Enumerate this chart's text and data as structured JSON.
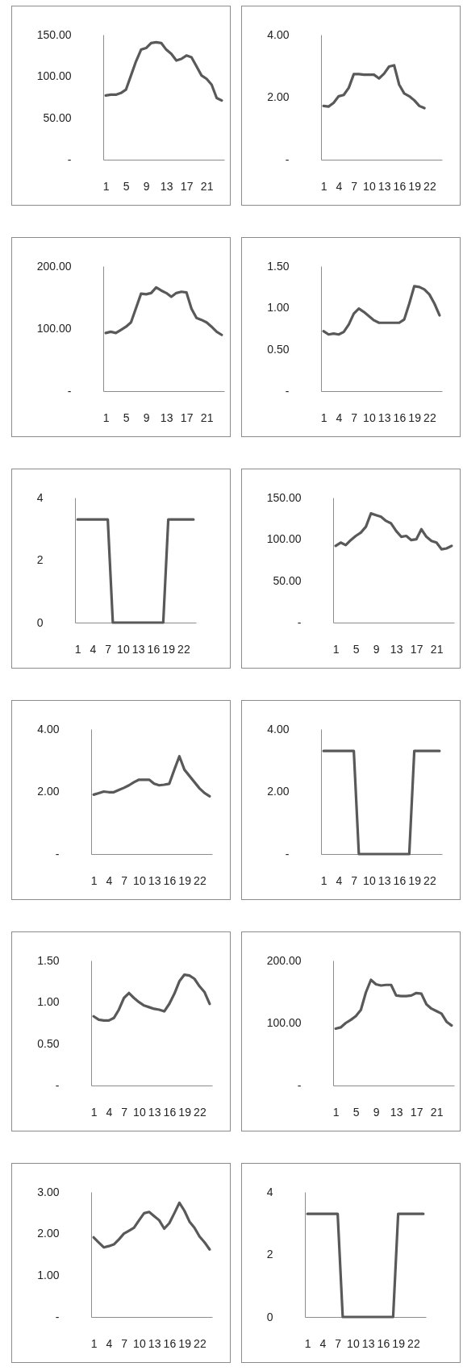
{
  "chart_data": [
    {
      "type": "line",
      "color": "#595959",
      "categories": [
        "1",
        null,
        null,
        null,
        "5",
        null,
        null,
        null,
        "9",
        null,
        null,
        null,
        "13",
        null,
        null,
        null,
        "17",
        null,
        null,
        null,
        "21",
        null,
        null,
        null
      ],
      "values": [
        77,
        78,
        78,
        80,
        84,
        101,
        118,
        132,
        134,
        140,
        141,
        140,
        132,
        127,
        119,
        121,
        125,
        123,
        112,
        101,
        97,
        90,
        74,
        71
      ],
      "ylim": [
        0,
        150
      ],
      "yticks": [
        {
          "value": 0,
          "label": "-"
        },
        {
          "value": 50,
          "label": "50.00"
        },
        {
          "value": 100,
          "label": "100.00"
        },
        {
          "value": 150,
          "label": "150.00"
        }
      ]
    },
    {
      "type": "line",
      "color": "#595959",
      "categories": [
        "1",
        null,
        null,
        "4",
        null,
        null,
        "7",
        null,
        null,
        "10",
        null,
        null,
        "13",
        null,
        null,
        "16",
        null,
        null,
        "19",
        null,
        null,
        "22",
        null,
        null
      ],
      "values": [
        1.72,
        1.7,
        1.82,
        2.03,
        2.07,
        2.3,
        2.74,
        2.74,
        2.72,
        2.72,
        2.72,
        2.6,
        2.75,
        2.98,
        3.02,
        2.4,
        2.12,
        2.03,
        1.9,
        1.72,
        1.65,
        null,
        null,
        null
      ],
      "ylim": [
        0,
        4
      ],
      "yticks": [
        {
          "value": 0,
          "label": "-"
        },
        {
          "value": 2,
          "label": "2.00"
        },
        {
          "value": 4,
          "label": "4.00"
        }
      ]
    },
    {
      "type": "line",
      "color": "#595959",
      "categories": [
        "1",
        null,
        null,
        null,
        "5",
        null,
        null,
        null,
        "9",
        null,
        null,
        null,
        "13",
        null,
        null,
        null,
        "17",
        null,
        null,
        null,
        "21",
        null,
        null,
        null
      ],
      "values": [
        93,
        95,
        93,
        98,
        103,
        110,
        133,
        156,
        155,
        157,
        166,
        161,
        157,
        151,
        157,
        159,
        158,
        132,
        117,
        114,
        110,
        103,
        95,
        90
      ],
      "ylim": [
        0,
        200
      ],
      "yticks": [
        {
          "value": 0,
          "label": "-"
        },
        {
          "value": 100,
          "label": "100.00"
        },
        {
          "value": 200,
          "label": "200.00"
        }
      ]
    },
    {
      "type": "line",
      "color": "#595959",
      "categories": [
        "1",
        null,
        null,
        "4",
        null,
        null,
        "7",
        null,
        null,
        "10",
        null,
        null,
        "13",
        null,
        null,
        "16",
        null,
        null,
        "19",
        null,
        null,
        "22",
        null,
        null
      ],
      "values": [
        0.72,
        0.68,
        0.69,
        0.68,
        0.71,
        0.8,
        0.93,
        0.99,
        0.95,
        0.9,
        0.85,
        0.82,
        0.82,
        0.82,
        0.82,
        0.82,
        0.86,
        1.05,
        1.26,
        1.25,
        1.22,
        1.16,
        1.05,
        0.91
      ],
      "ylim": [
        0,
        1.5
      ],
      "yticks": [
        {
          "value": 0,
          "label": "-"
        },
        {
          "value": 0.5,
          "label": "0.50"
        },
        {
          "value": 1,
          "label": "1.00"
        },
        {
          "value": 1.5,
          "label": "1.50"
        }
      ]
    },
    {
      "type": "line",
      "color": "#595959",
      "categories": [
        "1",
        null,
        null,
        "4",
        null,
        null,
        "7",
        null,
        null,
        "10",
        null,
        null,
        "13",
        null,
        null,
        "16",
        null,
        null,
        "19",
        null,
        null,
        "22",
        null,
        null
      ],
      "values": [
        3.3,
        3.3,
        3.3,
        3.3,
        3.3,
        3.3,
        3.3,
        0,
        0,
        0,
        0,
        0,
        0,
        0,
        0,
        0,
        0,
        0,
        3.3,
        3.3,
        3.3,
        3.3,
        3.3,
        3.3
      ],
      "ylim": [
        0,
        4
      ],
      "yticks": [
        0,
        2,
        4
      ]
    },
    {
      "type": "line",
      "color": "#595959",
      "categories": [
        "1",
        null,
        null,
        null,
        "5",
        null,
        null,
        null,
        "9",
        null,
        null,
        null,
        "13",
        null,
        null,
        null,
        "17",
        null,
        null,
        null,
        "21",
        null,
        null,
        null
      ],
      "values": [
        92,
        96,
        93,
        99,
        104,
        108,
        115,
        131,
        129,
        127,
        122,
        119,
        110,
        103,
        104,
        99,
        100,
        112,
        103,
        98,
        96,
        88,
        89,
        92
      ],
      "ylim": [
        0,
        150
      ],
      "yticks": [
        {
          "value": 0,
          "label": "-"
        },
        {
          "value": 50,
          "label": "50.00"
        },
        {
          "value": 100,
          "label": "100.00"
        },
        {
          "value": 150,
          "label": "150.00"
        }
      ]
    },
    {
      "type": "line",
      "color": "#595959",
      "categories": [
        "1",
        null,
        null,
        "4",
        null,
        null,
        "7",
        null,
        null,
        "10",
        null,
        null,
        "13",
        null,
        null,
        "16",
        null,
        null,
        "19",
        null,
        null,
        "22",
        null,
        null
      ],
      "values": [
        1.9,
        1.95,
        2.0,
        1.98,
        1.98,
        2.05,
        2.12,
        2.2,
        2.3,
        2.38,
        2.38,
        2.38,
        2.25,
        2.2,
        2.22,
        2.25,
        2.7,
        3.13,
        2.7,
        2.5,
        2.3,
        2.1,
        1.95,
        1.85
      ],
      "ylim": [
        0,
        4
      ],
      "yticks": [
        {
          "value": 0,
          "label": "-"
        },
        {
          "value": 2,
          "label": "2.00"
        },
        {
          "value": 4,
          "label": "4.00"
        }
      ]
    },
    {
      "type": "line",
      "color": "#595959",
      "categories": [
        "1",
        null,
        null,
        "4",
        null,
        null,
        "7",
        null,
        null,
        "10",
        null,
        null,
        "13",
        null,
        null,
        "16",
        null,
        null,
        "19",
        null,
        null,
        "22",
        null,
        null
      ],
      "values": [
        3.3,
        3.3,
        3.3,
        3.3,
        3.3,
        3.3,
        3.3,
        0,
        0,
        0,
        0,
        0,
        0,
        0,
        0,
        0,
        0,
        0,
        3.3,
        3.3,
        3.3,
        3.3,
        3.3,
        3.3
      ],
      "ylim": [
        0,
        4
      ],
      "yticks": [
        {
          "value": 0,
          "label": "-"
        },
        {
          "value": 2,
          "label": "2.00"
        },
        {
          "value": 4,
          "label": "4.00"
        }
      ]
    },
    {
      "type": "line",
      "color": "#595959",
      "categories": [
        "1",
        null,
        null,
        "4",
        null,
        null,
        "7",
        null,
        null,
        "10",
        null,
        null,
        "13",
        null,
        null,
        "16",
        null,
        null,
        "19",
        null,
        null,
        "22",
        null,
        null
      ],
      "values": [
        0.83,
        0.79,
        0.78,
        0.78,
        0.81,
        0.91,
        1.05,
        1.11,
        1.05,
        1.0,
        0.96,
        0.94,
        0.92,
        0.91,
        0.89,
        0.98,
        1.1,
        1.25,
        1.33,
        1.32,
        1.28,
        1.19,
        1.12,
        0.98
      ],
      "ylim": [
        0,
        1.5
      ],
      "yticks": [
        {
          "value": 0,
          "label": "-"
        },
        {
          "value": 0.5,
          "label": "0.50"
        },
        {
          "value": 1,
          "label": "1.00"
        },
        {
          "value": 1.5,
          "label": "1.50"
        }
      ]
    },
    {
      "type": "line",
      "color": "#595959",
      "categories": [
        "1",
        null,
        null,
        null,
        "5",
        null,
        null,
        null,
        "9",
        null,
        null,
        null,
        "13",
        null,
        null,
        null,
        "17",
        null,
        null,
        null,
        "21",
        null,
        null,
        null
      ],
      "values": [
        91,
        93,
        100,
        105,
        111,
        121,
        149,
        169,
        162,
        160,
        161,
        161,
        144,
        143,
        143,
        144,
        148,
        147,
        130,
        123,
        119,
        115,
        102,
        96
      ],
      "ylim": [
        0,
        200
      ],
      "yticks": [
        {
          "value": 0,
          "label": "-"
        },
        {
          "value": 100,
          "label": "100.00"
        },
        {
          "value": 200,
          "label": "200.00"
        }
      ]
    },
    {
      "type": "line",
      "color": "#595959",
      "categories": [
        "1",
        null,
        null,
        "4",
        null,
        null,
        "7",
        null,
        null,
        "10",
        null,
        null,
        "13",
        null,
        null,
        "16",
        null,
        null,
        "19",
        null,
        null,
        "22",
        null,
        null
      ],
      "values": [
        1.91,
        1.79,
        1.67,
        1.7,
        1.74,
        1.86,
        2.0,
        2.07,
        2.14,
        2.32,
        2.49,
        2.52,
        2.42,
        2.32,
        2.12,
        2.25,
        2.49,
        2.74,
        2.55,
        2.29,
        2.14,
        1.93,
        1.79,
        1.62
      ],
      "ylim": [
        0,
        3
      ],
      "yticks": [
        {
          "value": 0,
          "label": "-"
        },
        {
          "value": 1,
          "label": "1.00"
        },
        {
          "value": 2,
          "label": "2.00"
        },
        {
          "value": 3,
          "label": "3.00"
        }
      ]
    },
    {
      "type": "line",
      "color": "#595959",
      "categories": [
        "1",
        null,
        null,
        "4",
        null,
        null,
        "7",
        null,
        null,
        "10",
        null,
        null,
        "13",
        null,
        null,
        "16",
        null,
        null,
        "19",
        null,
        null,
        "22",
        null,
        null
      ],
      "values": [
        3.3,
        3.3,
        3.3,
        3.3,
        3.3,
        3.3,
        3.3,
        0,
        0,
        0,
        0,
        0,
        0,
        0,
        0,
        0,
        0,
        0,
        3.3,
        3.3,
        3.3,
        3.3,
        3.3,
        3.3
      ],
      "ylim": [
        0,
        4
      ],
      "yticks": [
        0,
        2,
        4
      ]
    }
  ]
}
